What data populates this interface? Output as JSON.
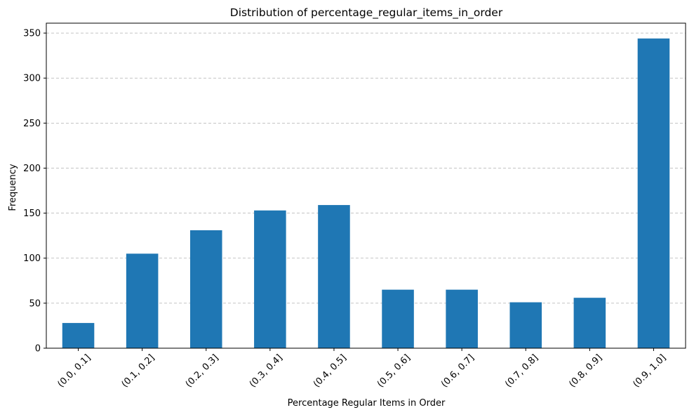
{
  "chart_data": {
    "type": "bar",
    "title": "Distribution of percentage_regular_items_in_order",
    "xlabel": "Percentage Regular Items in Order",
    "ylabel": "Frequency",
    "categories": [
      "(0.0, 0.1]",
      "(0.1, 0.2]",
      "(0.2, 0.3]",
      "(0.3, 0.4]",
      "(0.4, 0.5]",
      "(0.5, 0.6]",
      "(0.6, 0.7]",
      "(0.7, 0.8]",
      "(0.8, 0.9]",
      "(0.9, 1.0]"
    ],
    "values": [
      28,
      105,
      131,
      153,
      159,
      65,
      65,
      51,
      56,
      344
    ],
    "ylim": [
      0,
      361
    ],
    "yticks": [
      0,
      50,
      100,
      150,
      200,
      250,
      300,
      350
    ],
    "grid": "y-dashed",
    "bar_color": "#1f77b4",
    "grid_color": "#b0b0b0"
  }
}
